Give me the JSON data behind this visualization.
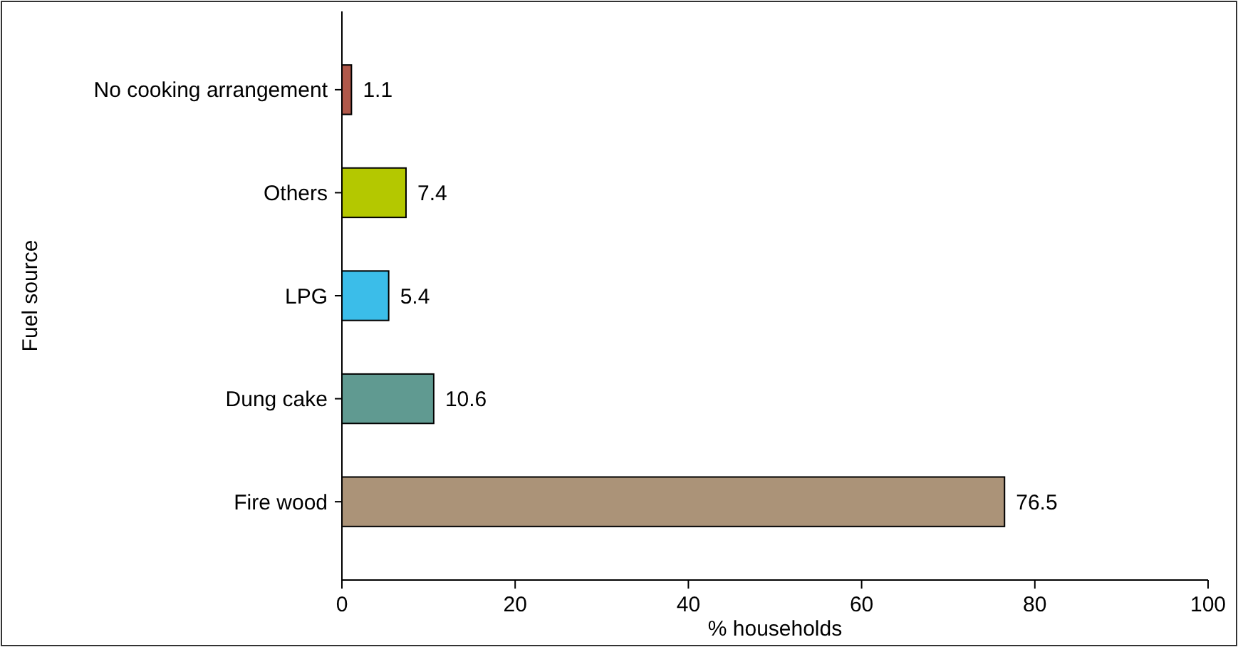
{
  "chart_data": {
    "type": "bar",
    "orientation": "horizontal",
    "xlabel": "% households",
    "ylabel": "Fuel source",
    "categories": [
      "No cooking arrangement",
      "Others",
      "LPG",
      "Dung cake",
      "Fire wood"
    ],
    "values": [
      1.1,
      7.4,
      5.4,
      10.6,
      76.5
    ],
    "colors": [
      "#b0584a",
      "#b4c800",
      "#3bbde9",
      "#609a91",
      "#ab9378"
    ],
    "xlim": [
      0,
      100
    ],
    "xticks": [
      0,
      20,
      40,
      60,
      80,
      100
    ],
    "data_labels": true,
    "grid": false
  }
}
